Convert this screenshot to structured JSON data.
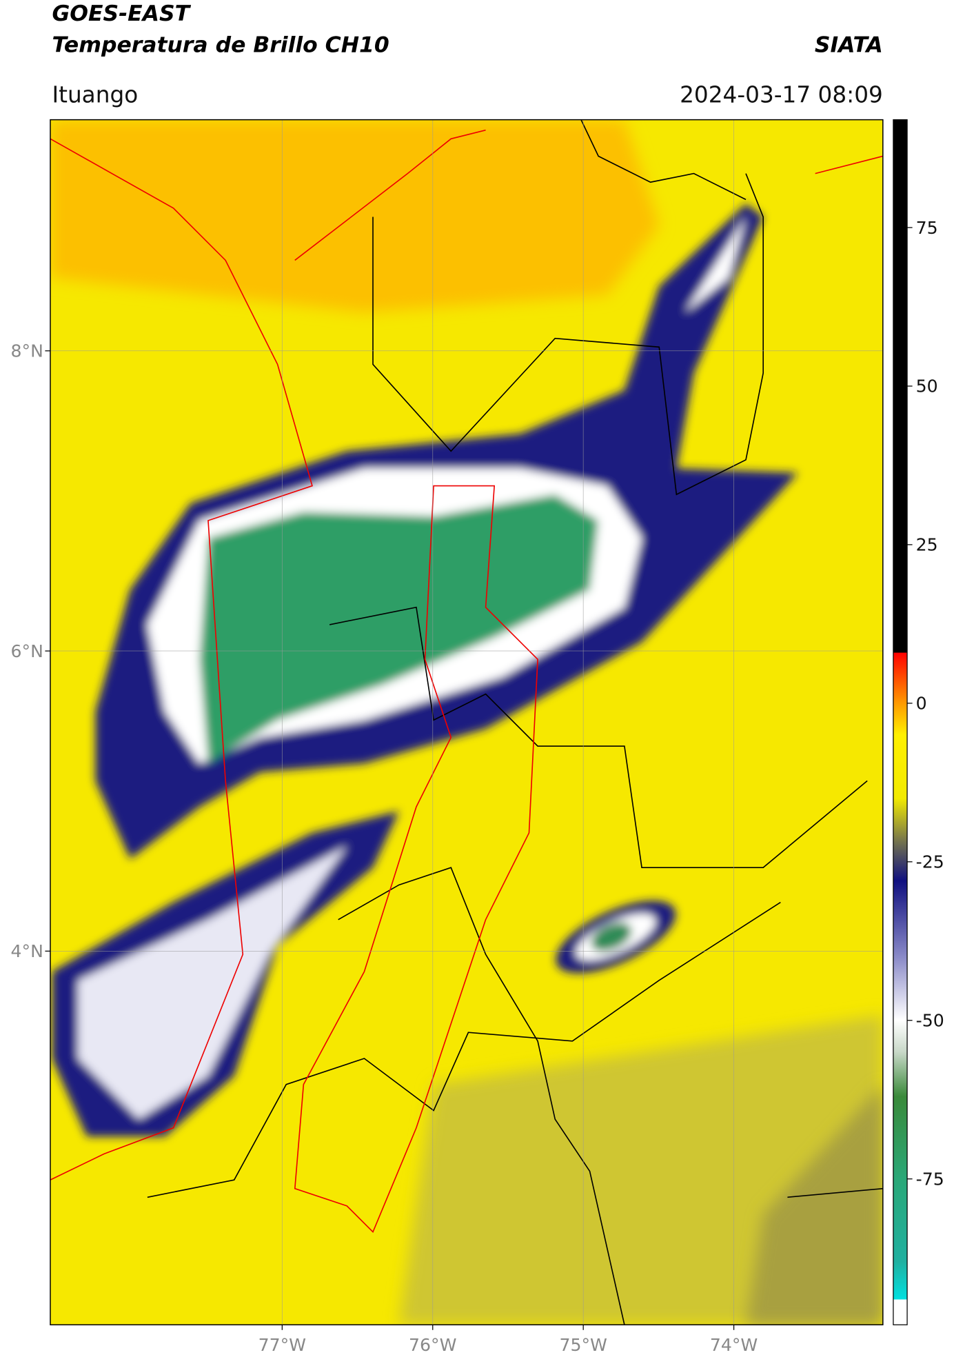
{
  "header": {
    "title": "GOES-EAST",
    "subtitle": "Temperatura de Brillo CH10",
    "organization": "SIATA",
    "location": "Ituango",
    "datetime": "2024-03-17 08:09"
  },
  "map": {
    "xlim": [
      -78.54,
      -73.01
    ],
    "ylim": [
      1.51,
      9.54
    ],
    "xticks": [
      {
        "value": -77,
        "label": "77°W"
      },
      {
        "value": -76,
        "label": "76°W"
      },
      {
        "value": -75,
        "label": "75°W"
      },
      {
        "value": -74,
        "label": "74°W"
      }
    ],
    "yticks": [
      {
        "value": 8,
        "label": "8°N"
      },
      {
        "value": 6,
        "label": "6°N"
      },
      {
        "value": 4,
        "label": "4°N"
      }
    ],
    "grid": true
  },
  "colorbar": {
    "lim": [
      -98,
      92
    ],
    "ticks": [
      75,
      50,
      25,
      0,
      -25,
      -50,
      -75
    ],
    "colormap": [
      {
        "value": -98,
        "color": "#ffffff"
      },
      {
        "value": -94,
        "color": "#ffffff"
      },
      {
        "value": -94,
        "color": "#00e0e0"
      },
      {
        "value": -88,
        "color": "#20b0a0"
      },
      {
        "value": -75,
        "color": "#2aa878"
      },
      {
        "value": -62,
        "color": "#3a8a3a"
      },
      {
        "value": -55,
        "color": "#c8d8c8"
      },
      {
        "value": -50,
        "color": "#ffffff"
      },
      {
        "value": -40,
        "color": "#8a8ac8"
      },
      {
        "value": -28,
        "color": "#101080"
      },
      {
        "value": -22,
        "color": "#707050"
      },
      {
        "value": -15,
        "color": "#f2ea00"
      },
      {
        "value": -5,
        "color": "#fff000"
      },
      {
        "value": 0,
        "color": "#ff9a00"
      },
      {
        "value": 8,
        "color": "#ff0000"
      },
      {
        "value": 8,
        "color": "#000000"
      },
      {
        "value": 92,
        "color": "#000000"
      }
    ]
  }
}
